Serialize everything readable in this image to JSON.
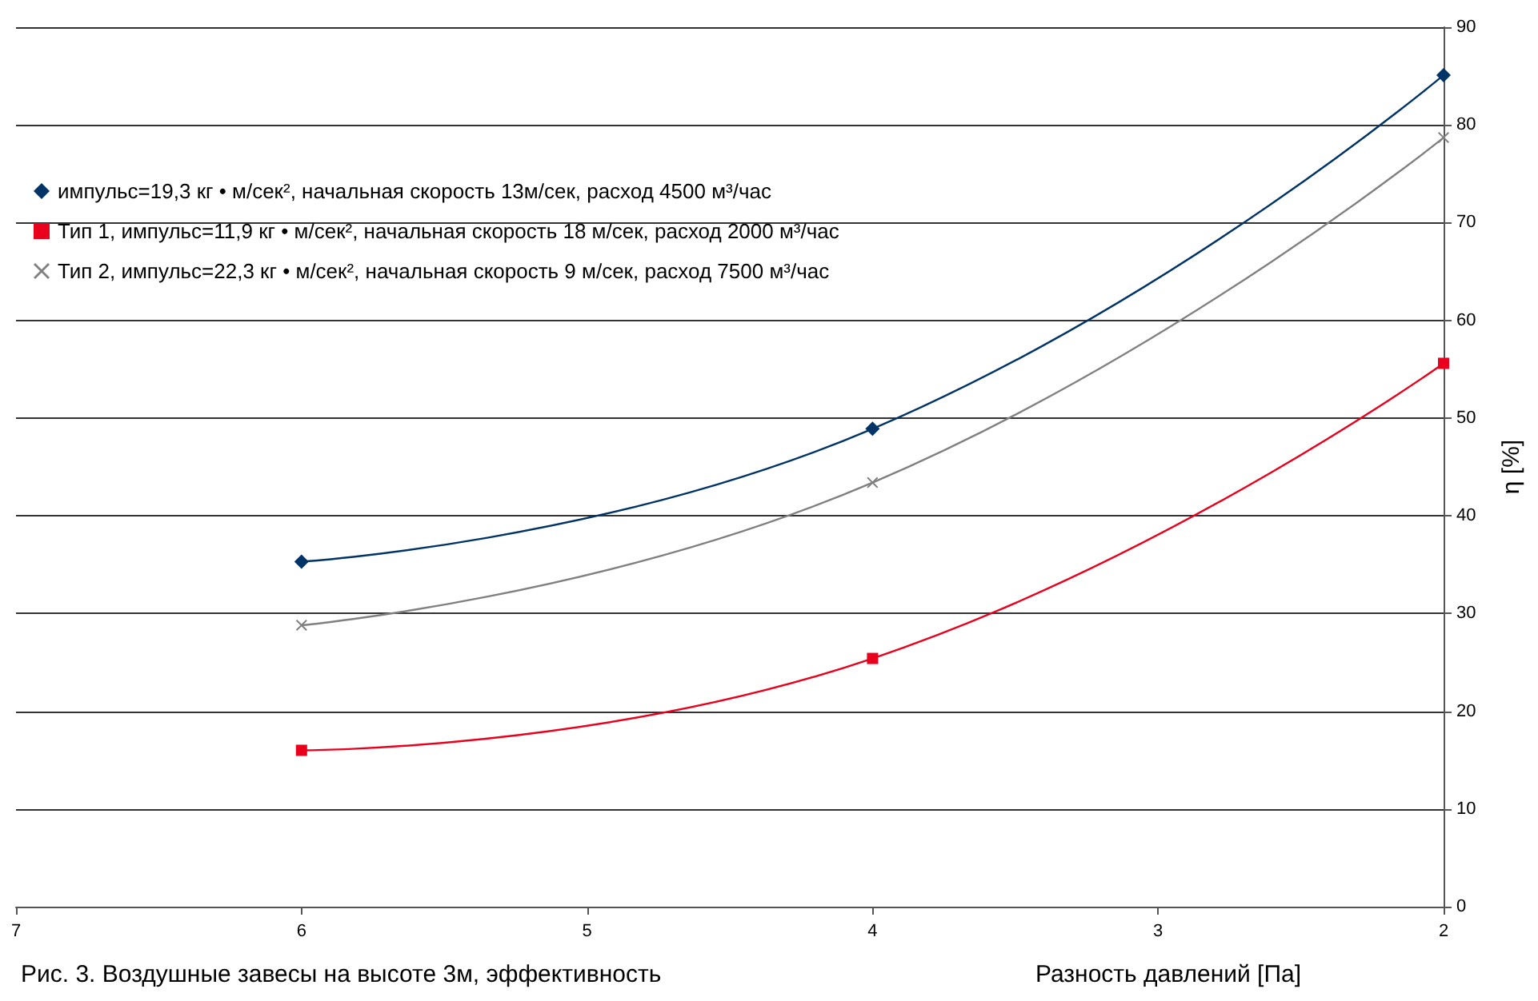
{
  "chart_data": {
    "type": "line",
    "title": "Рис. 3. Воздушные завесы на высоте 3м, эффективность",
    "xlabel": "Разность давлений [Па]",
    "ylabel": "η [%]",
    "x": [
      6,
      4,
      2
    ],
    "series": [
      {
        "name": "импульс=19,3 кг • м/сек², начальная скорость 13м/сек, расход 4500 м³/час",
        "color": "#003366",
        "marker": "diamond",
        "values": [
          35.3,
          48.9,
          85.1
        ]
      },
      {
        "name": "Тип 1, импульс=11,9 кг • м/сек², начальная скорость 18 м/сек, расход 2000 м³/час",
        "color": "#e8001c",
        "marker": "square",
        "values": [
          16.0,
          25.4,
          55.6
        ]
      },
      {
        "name": "Тип 2, импульс=22,3 кг • м/сек², начальная скорость 9 м/сек, расход 7500 м³/час",
        "color": "#808080",
        "marker": "cross",
        "values": [
          28.8,
          43.4,
          78.7
        ]
      }
    ],
    "xlim": [
      7,
      2
    ],
    "xticks": [
      7,
      6,
      5,
      4,
      3,
      2
    ],
    "ylim": [
      0,
      90
    ],
    "yticks": [
      0,
      10,
      20,
      30,
      40,
      50,
      60,
      70,
      80,
      90
    ],
    "grid": "y",
    "legend": "top left",
    "line_style": "solid"
  }
}
